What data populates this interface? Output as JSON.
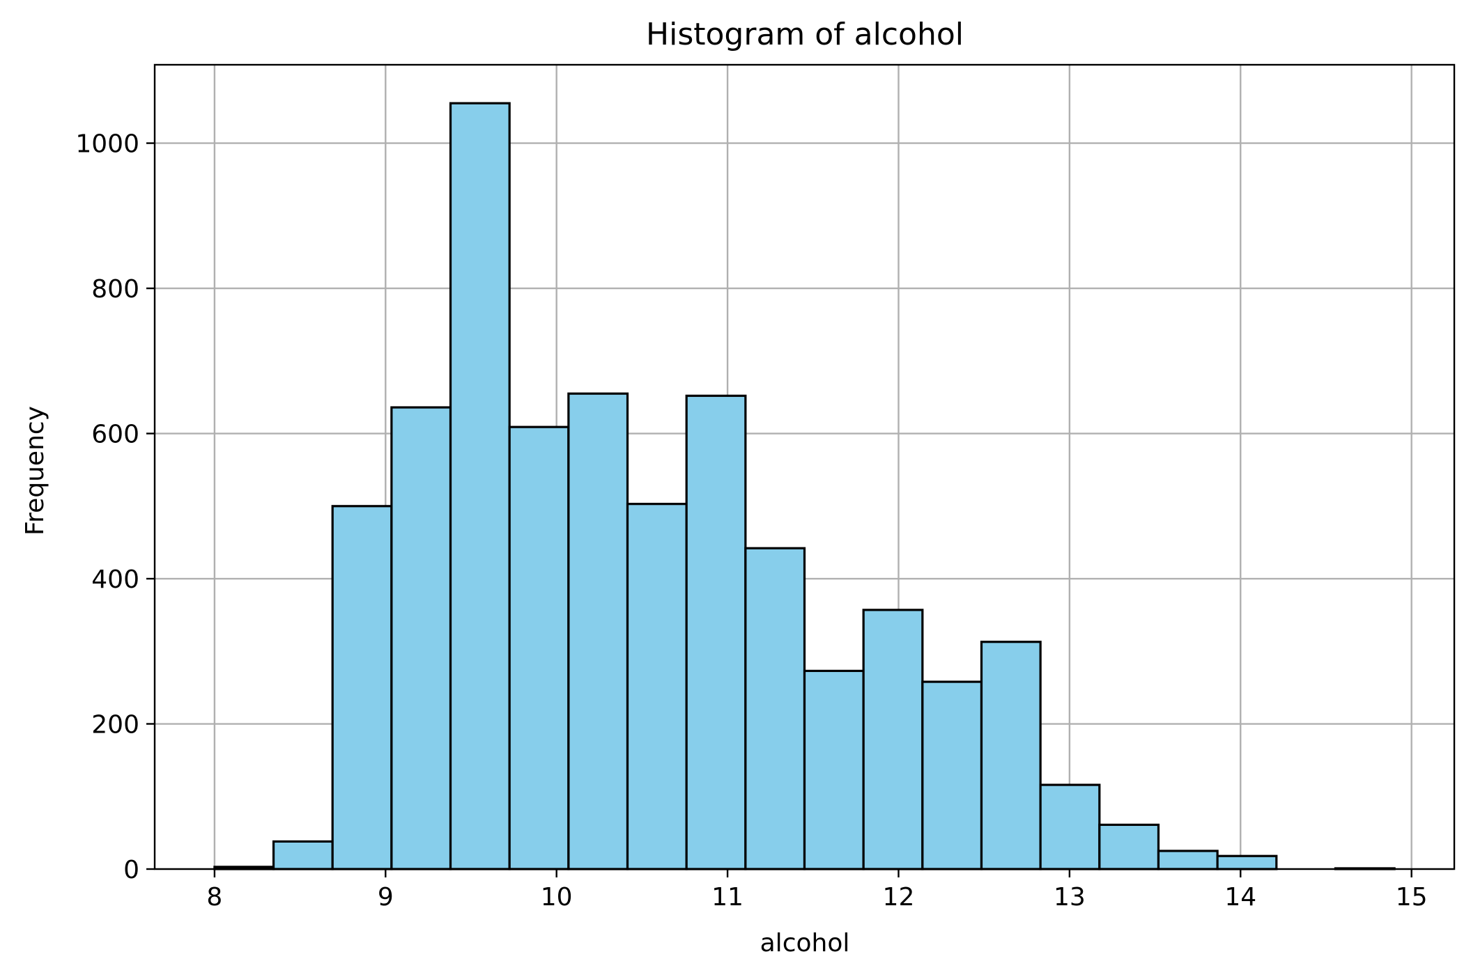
{
  "chart_data": {
    "type": "bar",
    "title": "Histogram of alcohol",
    "xlabel": "alcohol",
    "ylabel": "Frequency",
    "bin_start": 8.0,
    "bin_width": 0.345,
    "values": [
      3,
      38,
      500,
      636,
      1055,
      609,
      655,
      503,
      652,
      442,
      273,
      357,
      258,
      313,
      116,
      61,
      25,
      18,
      0,
      1
    ],
    "xlim": [
      7.65,
      15.25
    ],
    "ylim": [
      0,
      1108
    ],
    "x_ticks": [
      8,
      9,
      10,
      11,
      12,
      13,
      14,
      15
    ],
    "y_ticks": [
      0,
      200,
      400,
      600,
      800,
      1000
    ],
    "grid": true,
    "colors": {
      "bar_fill": "#87ceeb",
      "bar_edge": "#000000",
      "grid": "#b0b0b0",
      "frame": "#000000"
    }
  }
}
